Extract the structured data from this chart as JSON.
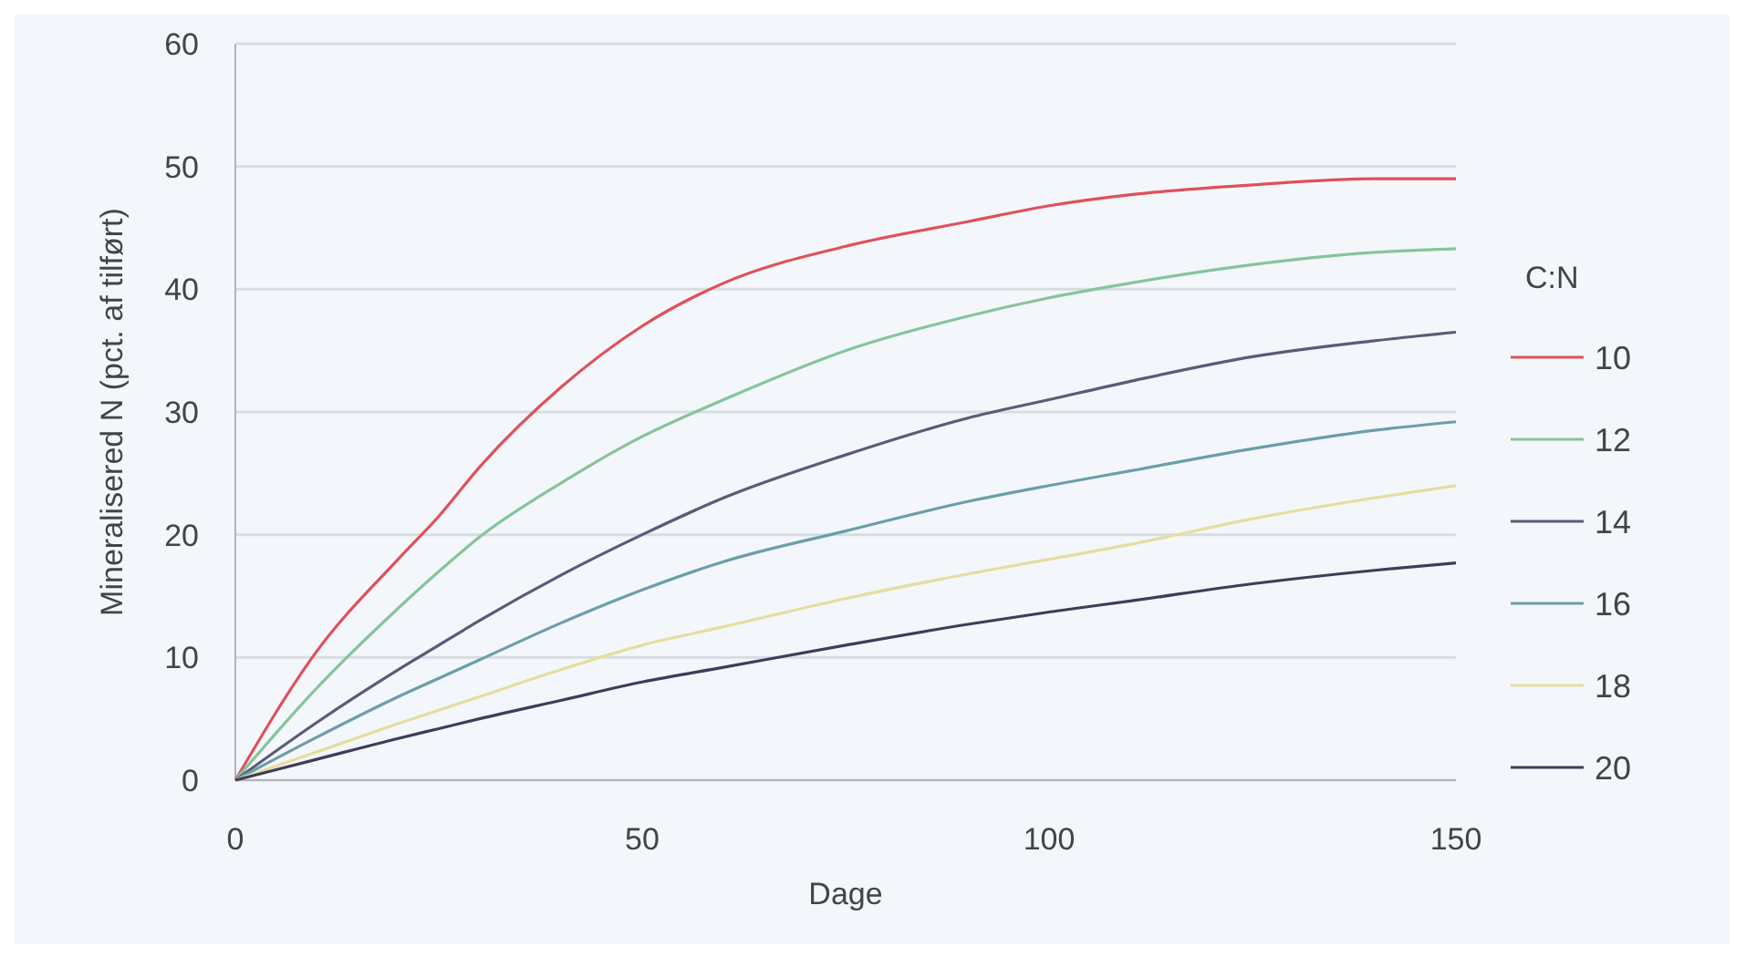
{
  "chart_data": {
    "type": "line",
    "xlabel": "Dage",
    "ylabel": "Mineralisered N (pct. af tilført)",
    "legend_title": "C:N",
    "x": [
      0,
      10,
      20,
      25,
      30,
      40,
      50,
      60,
      75,
      90,
      100,
      110,
      125,
      140,
      150
    ],
    "series": [
      {
        "name": "10",
        "color": "#e0505a",
        "values": [
          0,
          10.5,
          18,
          21.5,
          25.5,
          32,
          37,
          40.5,
          43.5,
          45.5,
          46.8,
          47.7,
          48.5,
          49,
          49
        ]
      },
      {
        "name": "12",
        "color": "#86c49c",
        "values": [
          0,
          7.5,
          14,
          17,
          19.8,
          24.2,
          28,
          31,
          35,
          37.8,
          39.3,
          40.5,
          42,
          43,
          43.3
        ]
      },
      {
        "name": "14",
        "color": "#5b5b78",
        "values": [
          0,
          4.7,
          9,
          11,
          13,
          16.7,
          20,
          23,
          26.5,
          29.5,
          31,
          32.5,
          34.5,
          35.8,
          36.5
        ]
      },
      {
        "name": "16",
        "color": "#6a9eaa",
        "values": [
          0,
          3.5,
          6.8,
          8.3,
          9.8,
          12.8,
          15.5,
          17.8,
          20.3,
          22.7,
          24,
          25.2,
          27,
          28.5,
          29.2
        ]
      },
      {
        "name": "18",
        "color": "#e8dca0",
        "values": [
          0,
          2.3,
          4.6,
          5.7,
          6.8,
          9,
          11,
          12.5,
          14.8,
          16.8,
          18,
          19.2,
          21.3,
          23,
          24
        ]
      },
      {
        "name": "20",
        "color": "#3d3d5a",
        "values": [
          0,
          1.7,
          3.4,
          4.2,
          5,
          6.5,
          8,
          9.2,
          11,
          12.7,
          13.7,
          14.6,
          16,
          17.1,
          17.7
        ]
      }
    ],
    "xlim": [
      0,
      150
    ],
    "ylim": [
      0,
      60
    ],
    "xticks": [
      0,
      50,
      100,
      150
    ],
    "yticks": [
      0,
      10,
      20,
      30,
      40,
      50,
      60
    ],
    "grid": "y",
    "legend": "right",
    "marker": "none",
    "line_style": "solid"
  }
}
